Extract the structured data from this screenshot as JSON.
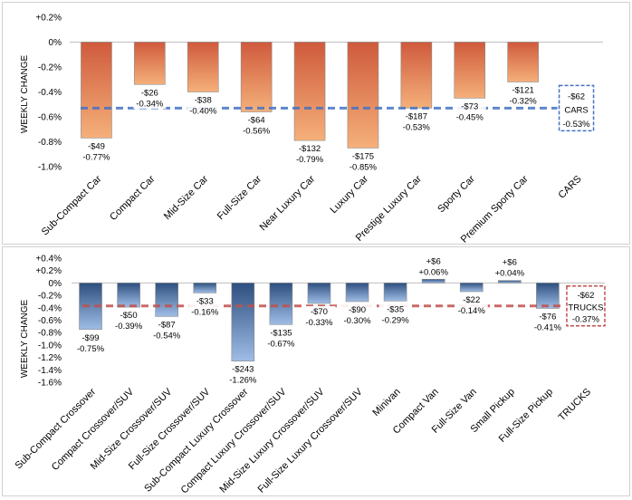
{
  "chart_data": [
    {
      "type": "bar",
      "title": "",
      "ylabel": "WEEKLY CHANGE",
      "ylim": [
        -1.0,
        0.2
      ],
      "ytick_step": 0.2,
      "tick_labels": [
        "+0.2%",
        "0%",
        "-0.2%",
        "-0.4%",
        "-0.6%",
        "-0.8%",
        "-1.0%"
      ],
      "categories": [
        "Sub-Compact Car",
        "Compact Car",
        "Mid-Size Car",
        "Full-Size Car",
        "Near Luxury Car",
        "Luxury Car",
        "Prestige Luxury Car",
        "Sporty Car",
        "Premium Sporty Car",
        "CARS"
      ],
      "values": [
        -0.77,
        -0.34,
        -0.4,
        -0.56,
        -0.79,
        -0.85,
        -0.53,
        -0.45,
        -0.32,
        null
      ],
      "dollar_labels": [
        "-$49",
        "-$26",
        "-$38",
        "-$64",
        "-$132",
        "-$175",
        "-$187",
        "-$73",
        "-$121"
      ],
      "pct_labels": [
        "-0.77%",
        "-0.34%",
        "-0.40%",
        "-0.56%",
        "-0.79%",
        "-0.85%",
        "-0.53%",
        "-0.45%",
        "-0.32%"
      ],
      "average": {
        "value": -0.53,
        "dollar": "-$62",
        "name": "CARS",
        "pct": "-0.53%",
        "color": "#4472c4"
      },
      "bar_colors": {
        "top": "#cf5a3c",
        "bottom": "#f5b07a"
      }
    },
    {
      "type": "bar",
      "title": "",
      "ylabel": "WEEKLY CHANGE",
      "ylim": [
        -1.6,
        0.4
      ],
      "ytick_step": 0.2,
      "tick_labels": [
        "+0.4%",
        "+0.2%",
        "0%",
        "-0.2%",
        "-0.4%",
        "-0.6%",
        "-0.8%",
        "-1.0%",
        "-1.2%",
        "-1.4%",
        "-1.6%"
      ],
      "categories": [
        "Sub-Compact Crossover",
        "Compact Crossover/SUV",
        "Mid-Size Crossover/SUV",
        "Full-Size Crossover/SUV",
        "Sub-Compact Luxury Crossover",
        "Compact Luxury Crossover/SUV",
        "Mid-Size Luxury Crossover/SUV",
        "Full-Size Luxury Crossover/SUV",
        "Minivan",
        "Compact Van",
        "Full-Size Van",
        "Small Pickup",
        "Full-Size Pickup",
        "TRUCKS"
      ],
      "values": [
        -0.75,
        -0.39,
        -0.54,
        -0.16,
        -1.26,
        -0.67,
        -0.33,
        -0.3,
        -0.29,
        0.06,
        -0.14,
        0.04,
        -0.41,
        null
      ],
      "dollar_labels": [
        "-$99",
        "-$50",
        "-$87",
        "-$33",
        "-$243",
        "-$135",
        "-$70",
        "-$90",
        "-$35",
        "+$6",
        "-$22",
        "+$6",
        "-$76"
      ],
      "pct_labels": [
        "-0.75%",
        "-0.39%",
        "-0.54%",
        "-0.16%",
        "-1.26%",
        "-0.67%",
        "-0.33%",
        "-0.30%",
        "-0.29%",
        "+0.06%",
        "-0.14%",
        "+0.04%",
        "-0.41%"
      ],
      "average": {
        "value": -0.37,
        "dollar": "-$62",
        "name": "TRUCKS",
        "pct": "-0.37%",
        "color": "#c0504d"
      },
      "bar_colors": {
        "top": "#2e4f7f",
        "bottom": "#9fbde6"
      }
    }
  ]
}
